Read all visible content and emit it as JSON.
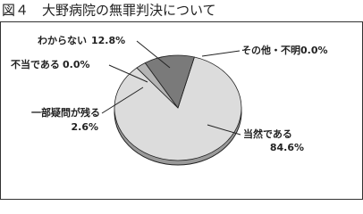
{
  "chart_data": {
    "type": "pie",
    "title": "図４　大野病院の無罪判決について",
    "categories": [
      "当然である",
      "一部疑問が残る",
      "不当である",
      "わからない",
      "その他・不明"
    ],
    "values": [
      84.6,
      2.6,
      0.0,
      12.8,
      0.0
    ],
    "value_labels": [
      "84.6%",
      "2.6%",
      "0.0%",
      "12.8%",
      "0.0%"
    ],
    "colors": [
      "#dcdcdc",
      "#b4b4b4",
      "#999999",
      "#7a7a7a",
      "#555555"
    ]
  }
}
